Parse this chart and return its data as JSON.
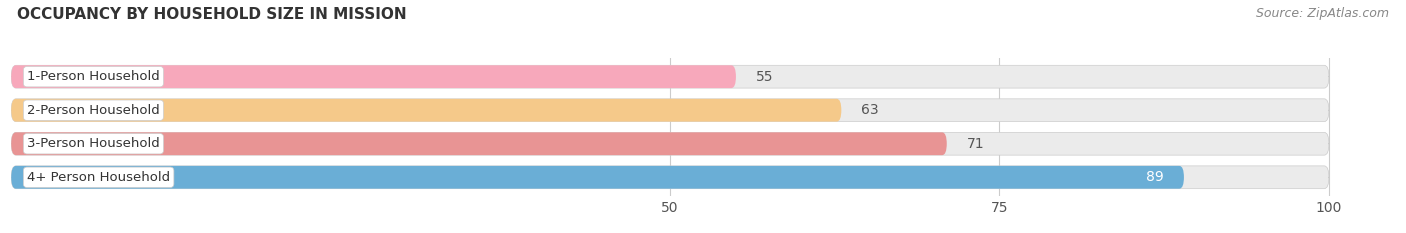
{
  "title": "OCCUPANCY BY HOUSEHOLD SIZE IN MISSION",
  "source": "Source: ZipAtlas.com",
  "categories": [
    "1-Person Household",
    "2-Person Household",
    "3-Person Household",
    "4+ Person Household"
  ],
  "values": [
    55,
    63,
    71,
    89
  ],
  "bar_colors": [
    "#f7a8bb",
    "#f5c98a",
    "#e89494",
    "#6aaed6"
  ],
  "label_colors": [
    "#333333",
    "#333333",
    "#333333",
    "#ffffff"
  ],
  "xlim": [
    0,
    105
  ],
  "xticks": [
    50,
    75,
    100
  ],
  "bar_height": 0.68,
  "background_color": "#ffffff",
  "bar_bg_color": "#ebebeb",
  "title_fontsize": 11,
  "source_fontsize": 9,
  "label_fontsize": 9.5,
  "tick_fontsize": 10,
  "value_fontsize": 10
}
